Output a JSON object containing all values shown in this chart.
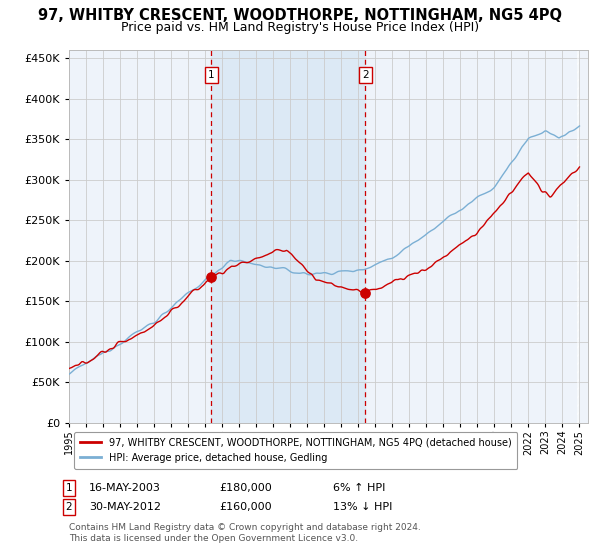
{
  "title": "97, WHITBY CRESCENT, WOODTHORPE, NOTTINGHAM, NG5 4PQ",
  "subtitle": "Price paid vs. HM Land Registry's House Price Index (HPI)",
  "title_fontsize": 10.5,
  "subtitle_fontsize": 9,
  "ylim": [
    0,
    460000
  ],
  "yticks": [
    0,
    50000,
    100000,
    150000,
    200000,
    250000,
    300000,
    350000,
    400000,
    450000
  ],
  "sale1_year": 2003.37,
  "sale1_value": 180000,
  "sale1_label": "1",
  "sale1_date": "16-MAY-2003",
  "sale1_price": "£180,000",
  "sale1_pct": "6% ↑ HPI",
  "sale2_year": 2012.41,
  "sale2_value": 160000,
  "sale2_label": "2",
  "sale2_date": "30-MAY-2012",
  "sale2_price": "£160,000",
  "sale2_pct": "13% ↓ HPI",
  "red_line_color": "#cc0000",
  "blue_line_color": "#7bafd4",
  "shade_color": "#dce9f5",
  "vline_color": "#cc0000",
  "grid_color": "#cccccc",
  "plot_bg_color": "#eef3fa",
  "legend_label1": "97, WHITBY CRESCENT, WOODTHORPE, NOTTINGHAM, NG5 4PQ (detached house)",
  "legend_label2": "HPI: Average price, detached house, Gedling",
  "footnote1": "Contains HM Land Registry data © Crown copyright and database right 2024.",
  "footnote2": "This data is licensed under the Open Government Licence v3.0."
}
